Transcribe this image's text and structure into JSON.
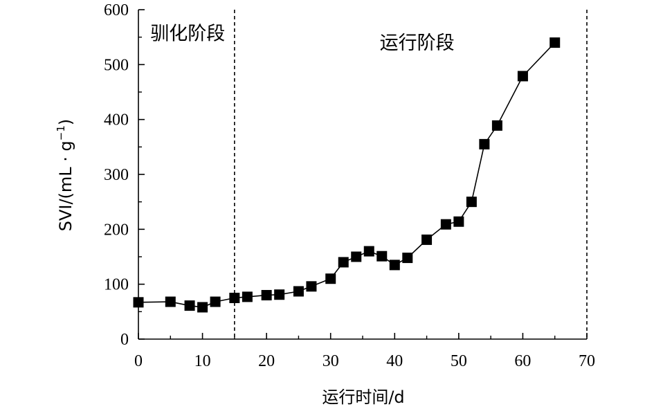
{
  "chart_data": {
    "type": "line",
    "x": [
      0,
      5,
      8,
      10,
      12,
      15,
      17,
      20,
      22,
      25,
      27,
      30,
      32,
      34,
      36,
      38,
      40,
      42,
      45,
      48,
      50,
      52,
      54,
      56,
      60,
      65
    ],
    "series": [
      {
        "values": [
          67,
          68,
          61,
          58,
          68,
          75,
          77,
          80,
          81,
          87,
          96,
          110,
          140,
          150,
          160,
          151,
          135,
          148,
          181,
          209,
          214,
          250,
          355,
          389,
          479,
          540
        ],
        "color": "#000000",
        "marker": "square"
      }
    ],
    "xlim": [
      0,
      70
    ],
    "ylim": [
      0,
      600
    ],
    "xticks": [
      0,
      10,
      20,
      30,
      40,
      50,
      60,
      70
    ],
    "yticks": [
      0,
      100,
      200,
      300,
      400,
      500,
      600
    ],
    "xlabel": "运行时间/d",
    "ylabel": "SVI/(mL · g",
    "ylabel_superscript": "−1",
    "ylabel_suffix": ")",
    "vertical_lines": [
      15,
      70
    ],
    "annotations": [
      {
        "text": "驯化阶段",
        "x": 7.7,
        "y": 545
      },
      {
        "text": "运行阶段",
        "x": 43.5,
        "y": 528
      }
    ],
    "grid": false
  }
}
